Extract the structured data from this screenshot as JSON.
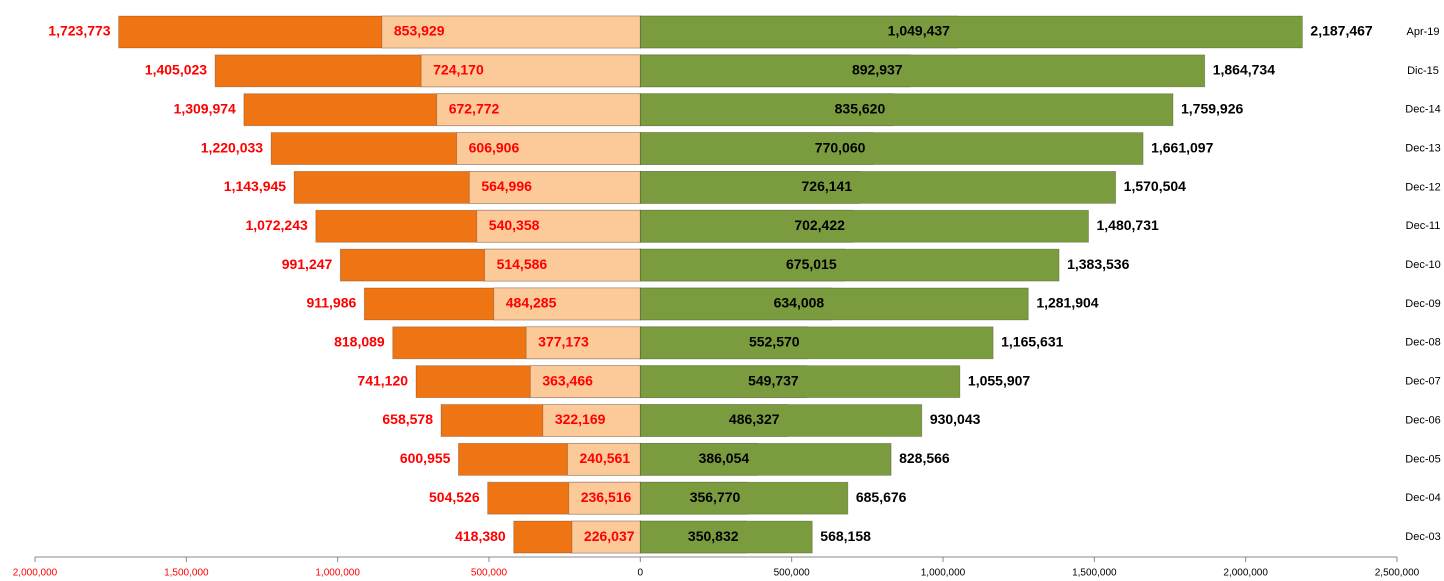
{
  "chart_data": {
    "type": "butterfly-bar",
    "categories": [
      "Apr-19",
      "Dic-15",
      "Dec-14",
      "Dec-13",
      "Dec-12",
      "Dec-11",
      "Dec-10",
      "Dec-09",
      "Dec-08",
      "Dec-07",
      "Dec-06",
      "Dec-05",
      "Dec-04",
      "Dec-03"
    ],
    "series": [
      {
        "color": "#ef7414",
        "label_color": "#ff0000",
        "values": [
          -1723773,
          -1405023,
          -1309974,
          -1220033,
          -1143945,
          -1072243,
          -991247,
          -911986,
          -818089,
          -741120,
          -658578,
          -600955,
          -504526,
          -418380
        ],
        "value_labels": [
          "1,723,773",
          "1,405,023",
          "1,309,974",
          "1,220,033",
          "1,143,945",
          "1,072,243",
          "991,247",
          "911,986",
          "818,089",
          "741,120",
          "658,578",
          "600,955",
          "504,526",
          "418,380"
        ]
      },
      {
        "color": "#fcc999",
        "label_color": "#ff0000",
        "values": [
          -853929,
          -724170,
          -672772,
          -606906,
          -564996,
          -540358,
          -514586,
          -484285,
          -377173,
          -363466,
          -322169,
          -240561,
          -236516,
          -226037
        ],
        "value_labels": [
          "853,929",
          "724,170",
          "672,772",
          "606,906",
          "564,996",
          "540,358",
          "514,586",
          "484,285",
          "377,173",
          "363,466",
          "322,169",
          "240,561",
          "236,516",
          "226,037"
        ]
      },
      {
        "color": "#d3e6b0",
        "label_color": "#000000",
        "values": [
          1049437,
          892937,
          835620,
          770060,
          726141,
          702422,
          675015,
          634008,
          552570,
          549737,
          486327,
          386054,
          356770,
          350832
        ],
        "value_labels": [
          "1,049,437",
          "892,937",
          "835,620",
          "770,060",
          "726,141",
          "702,422",
          "675,015",
          "634,008",
          "552,570",
          "549,737",
          "486,327",
          "386,054",
          "356,770",
          "350,832"
        ]
      },
      {
        "color": "#7b9c3e",
        "label_color": "#000000",
        "values": [
          2187467,
          1864734,
          1759926,
          1661097,
          1570504,
          1480731,
          1383536,
          1281904,
          1165631,
          1055907,
          930043,
          828566,
          685676,
          568158
        ],
        "value_labels": [
          "2,187,467",
          "1,864,734",
          "1,759,926",
          "1,661,097",
          "1,570,504",
          "1,480,731",
          "1,383,536",
          "1,281,904",
          "1,165,631",
          "1,055,907",
          "930,043",
          "828,566",
          "685,676",
          "568,158"
        ]
      }
    ],
    "xlim": [
      -2000000,
      2500000
    ],
    "xticks": [
      {
        "value": -2000000,
        "label": "2,000,000"
      },
      {
        "value": -1500000,
        "label": "1,500,000"
      },
      {
        "value": -1000000,
        "label": "1,000,000"
      },
      {
        "value": -500000,
        "label": "500,000"
      },
      0,
      {
        "value": 500000,
        "label": "500,000"
      },
      {
        "value": 1000000,
        "label": "1,000,000"
      },
      {
        "value": 1500000,
        "label": "1,500,000"
      },
      {
        "value": 2000000,
        "label": "2,000,000"
      },
      {
        "value": 2500000,
        "label": "2,500,000"
      }
    ],
    "negative_tick_color": "#ff0000",
    "positive_tick_color": "#000000"
  }
}
